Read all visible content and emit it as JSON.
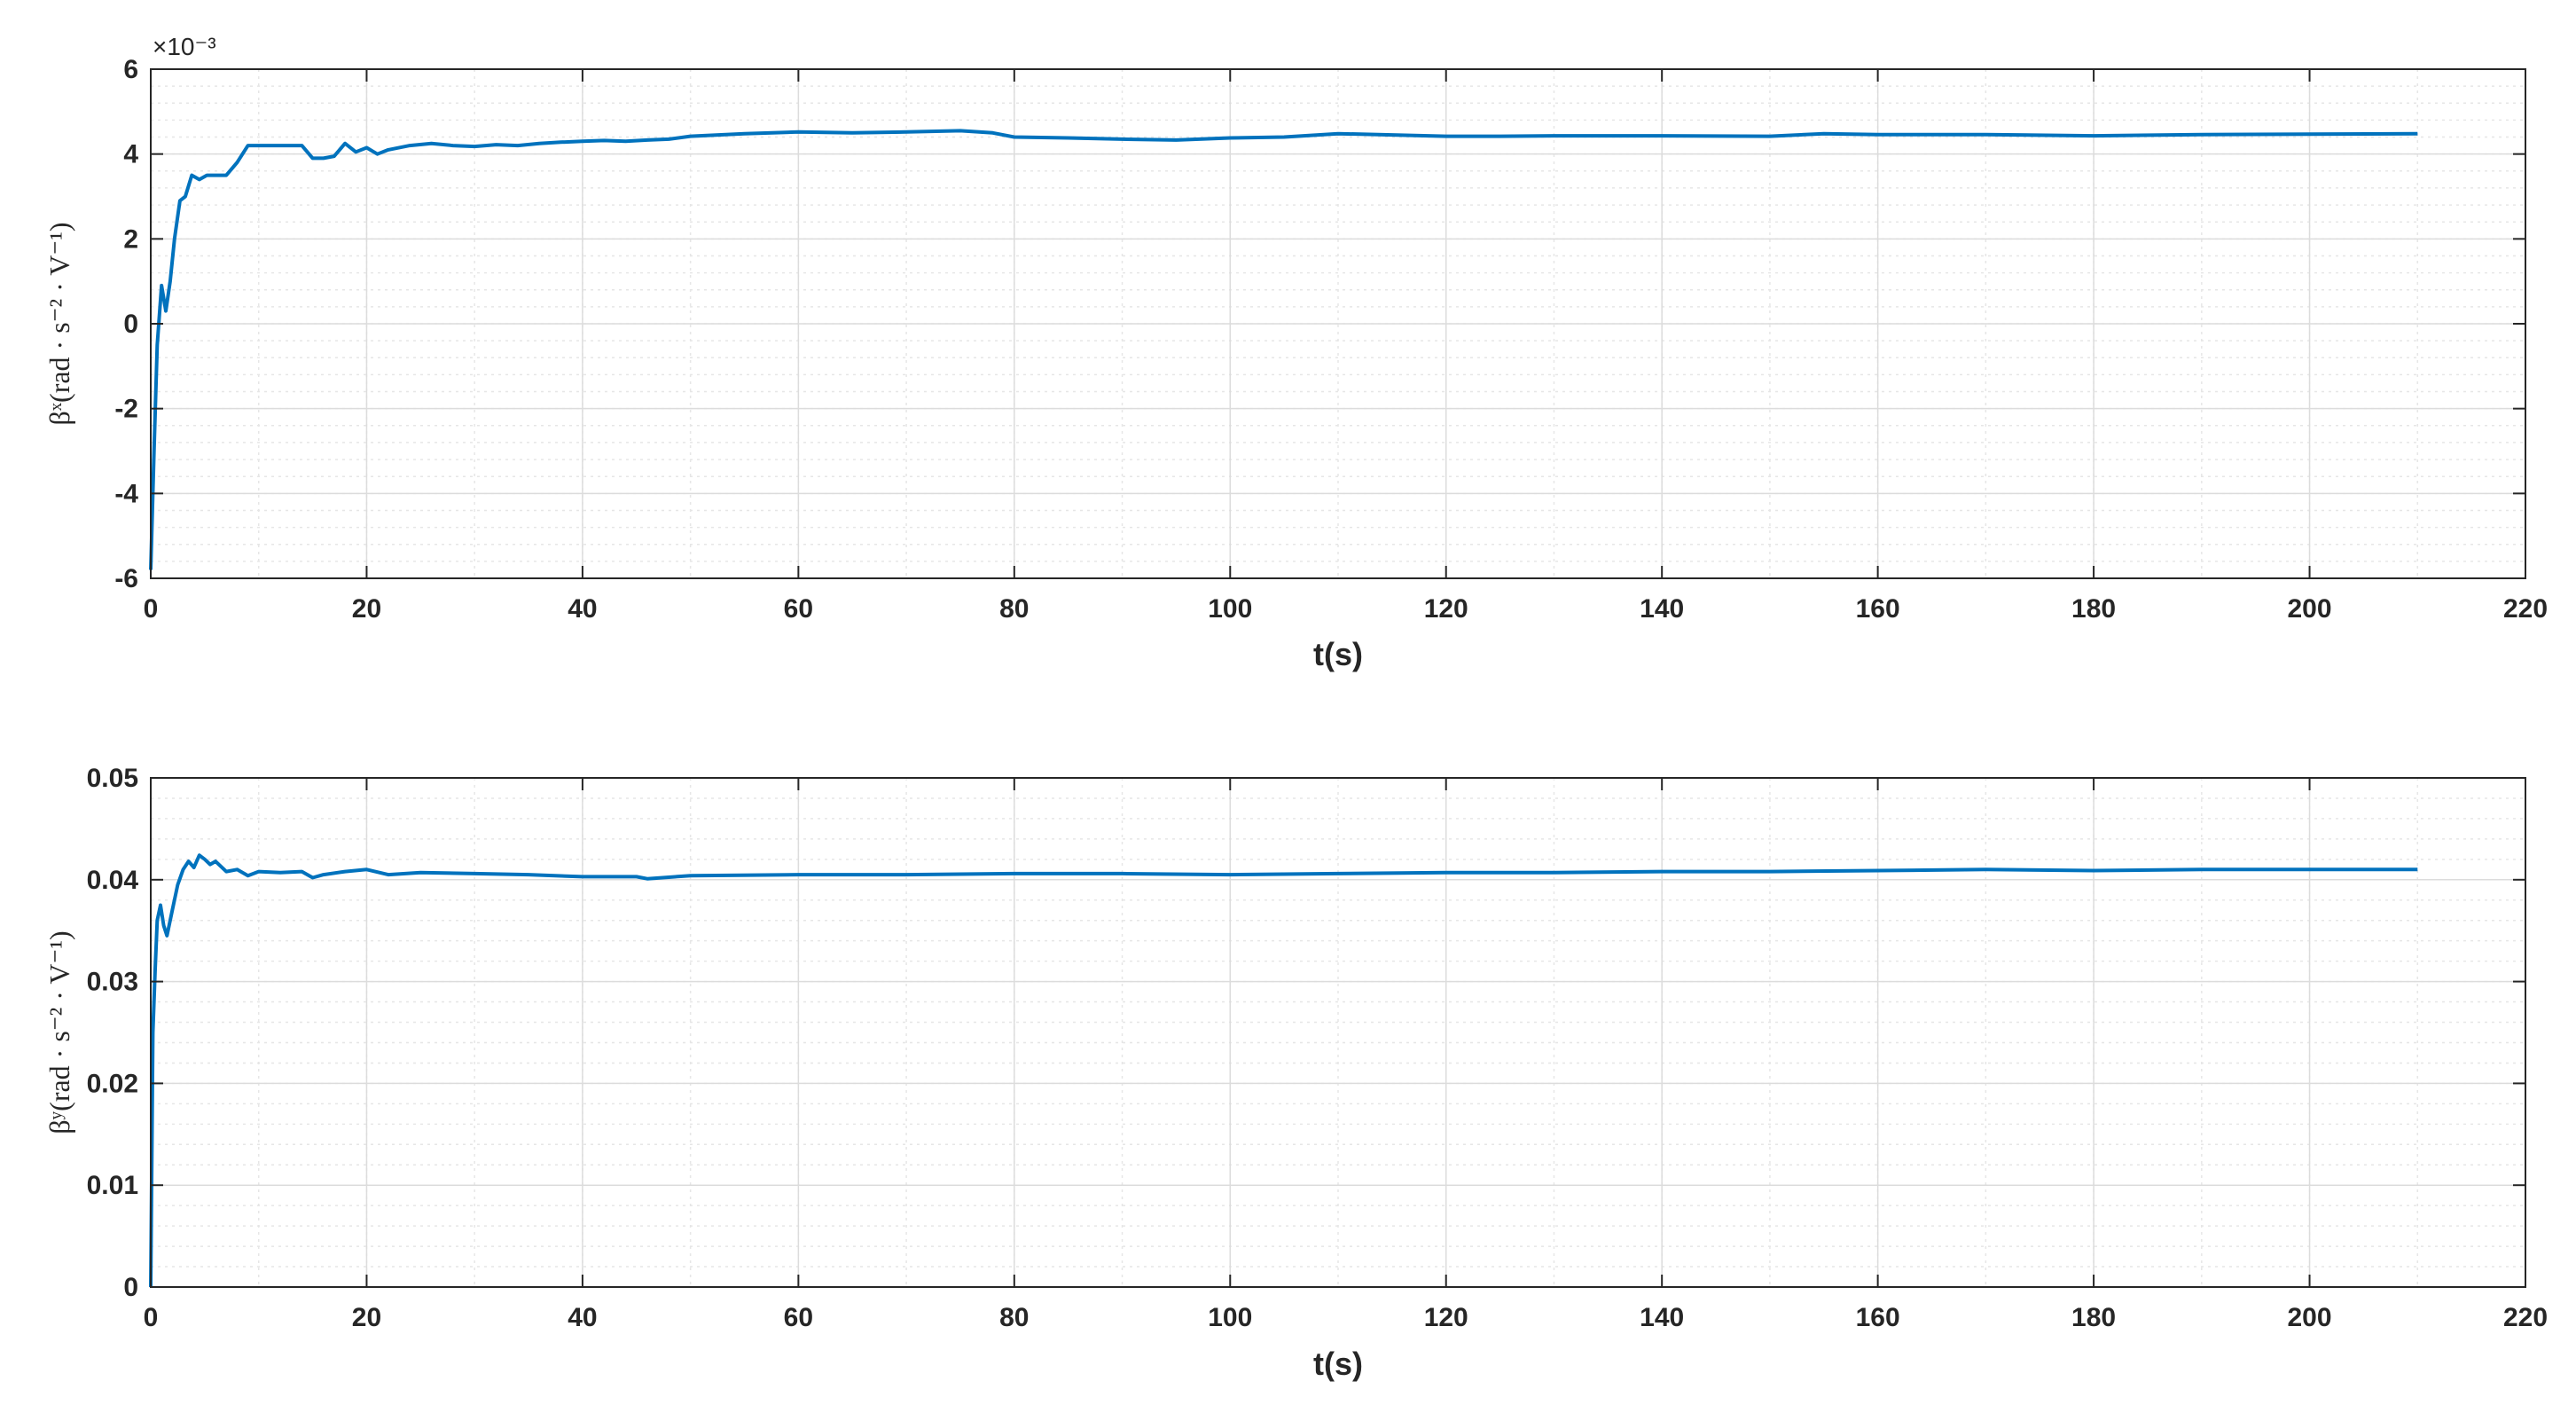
{
  "chart_data": [
    {
      "type": "line",
      "xlabel": "t(s)",
      "ylabel": "βˣ(rad · s⁻² · V⁻¹)",
      "exponent_label": "×10⁻³",
      "xlim": [
        0,
        220
      ],
      "ylim": [
        -6,
        6
      ],
      "xticks": [
        "0",
        "20",
        "40",
        "60",
        "80",
        "100",
        "120",
        "140",
        "160",
        "180",
        "200",
        "220"
      ],
      "yticks": [
        "-6",
        "-4",
        "-2",
        "0",
        "2",
        "4",
        "6"
      ],
      "grid": "on (major and minor)",
      "color": "#0072BD",
      "series": [
        {
          "x": [
            0,
            0.3,
            0.6,
            1,
            1.4,
            1.8,
            2.2,
            2.7,
            3.2,
            3.8,
            4.5,
            5.2,
            6,
            7,
            8,
            9,
            10,
            12,
            14,
            15,
            16,
            17,
            18,
            19,
            20,
            21,
            22,
            24,
            26,
            28,
            30,
            32,
            34,
            36,
            38,
            40,
            42,
            44,
            46,
            48,
            50,
            55,
            60,
            65,
            70,
            75,
            78,
            80,
            85,
            90,
            95,
            100,
            105,
            110,
            115,
            120,
            125,
            130,
            140,
            150,
            155,
            160,
            170,
            180,
            190,
            200,
            210
          ],
          "y": [
            -5.8,
            -3.0,
            -0.5,
            0.9,
            0.3,
            1.0,
            2.0,
            2.9,
            3.0,
            3.5,
            3.4,
            3.5,
            3.5,
            3.5,
            3.8,
            4.2,
            4.2,
            4.2,
            4.2,
            3.9,
            3.9,
            3.95,
            4.25,
            4.05,
            4.15,
            4.0,
            4.1,
            4.2,
            4.25,
            4.2,
            4.18,
            4.22,
            4.2,
            4.25,
            4.28,
            4.3,
            4.32,
            4.3,
            4.33,
            4.35,
            4.42,
            4.48,
            4.52,
            4.5,
            4.52,
            4.55,
            4.5,
            4.4,
            4.38,
            4.35,
            4.33,
            4.38,
            4.4,
            4.48,
            4.45,
            4.42,
            4.42,
            4.43,
            4.43,
            4.42,
            4.48,
            4.46,
            4.46,
            4.43,
            4.46,
            4.47,
            4.48
          ]
        }
      ]
    },
    {
      "type": "line",
      "xlabel": "t(s)",
      "ylabel": "βʸ(rad · s⁻² · V⁻¹)",
      "xlim": [
        0,
        220
      ],
      "ylim": [
        0,
        0.05
      ],
      "xticks": [
        "0",
        "20",
        "40",
        "60",
        "80",
        "100",
        "120",
        "140",
        "160",
        "180",
        "200",
        "220"
      ],
      "yticks": [
        "0",
        "0.01",
        "0.02",
        "0.03",
        "0.04",
        "0.05"
      ],
      "grid": "on (major and minor)",
      "color": "#0072BD",
      "series": [
        {
          "x": [
            0,
            0.2,
            0.4,
            0.6,
            0.9,
            1.2,
            1.5,
            2.0,
            2.5,
            3.0,
            3.5,
            4.0,
            4.5,
            5.0,
            5.5,
            6.0,
            7,
            8,
            9,
            10,
            12,
            14,
            15,
            16,
            18,
            20,
            22,
            25,
            30,
            35,
            40,
            45,
            46,
            50,
            60,
            70,
            80,
            90,
            100,
            110,
            120,
            130,
            140,
            150,
            160,
            170,
            180,
            190,
            200,
            210
          ],
          "y": [
            0.0,
            0.025,
            0.031,
            0.036,
            0.0375,
            0.0355,
            0.0345,
            0.037,
            0.0395,
            0.041,
            0.0418,
            0.0412,
            0.0424,
            0.042,
            0.0415,
            0.0418,
            0.0408,
            0.041,
            0.0404,
            0.0408,
            0.0407,
            0.0408,
            0.0402,
            0.0405,
            0.0408,
            0.041,
            0.0405,
            0.0407,
            0.0406,
            0.0405,
            0.0403,
            0.0403,
            0.0401,
            0.0404,
            0.0405,
            0.0405,
            0.0406,
            0.0406,
            0.0405,
            0.0406,
            0.0407,
            0.0407,
            0.0408,
            0.0408,
            0.0409,
            0.041,
            0.0409,
            0.041,
            0.041,
            0.041
          ]
        }
      ]
    }
  ]
}
